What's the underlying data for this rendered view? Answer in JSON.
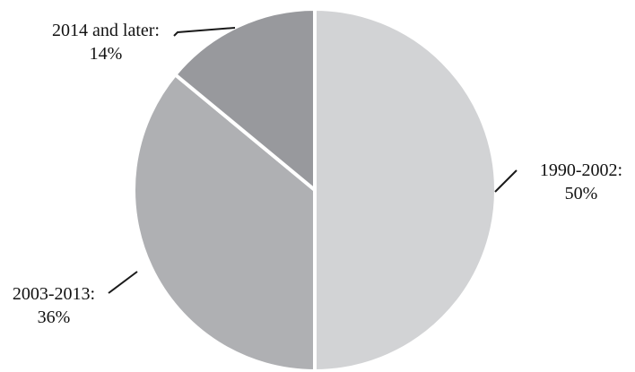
{
  "chart_data": {
    "type": "pie",
    "title": "",
    "slices": [
      {
        "label": "1990-2002:",
        "percent_label": "50%",
        "value": 50,
        "color": "#d2d3d5"
      },
      {
        "label": "2003-2013:",
        "percent_label": "36%",
        "value": 36,
        "color": "#afb0b3"
      },
      {
        "label": "2014 and later:",
        "percent_label": "14%",
        "value": 14,
        "color": "#98999d"
      }
    ],
    "start_angle_deg": 0,
    "direction": "clockwise",
    "separator_color": "#ffffff"
  }
}
